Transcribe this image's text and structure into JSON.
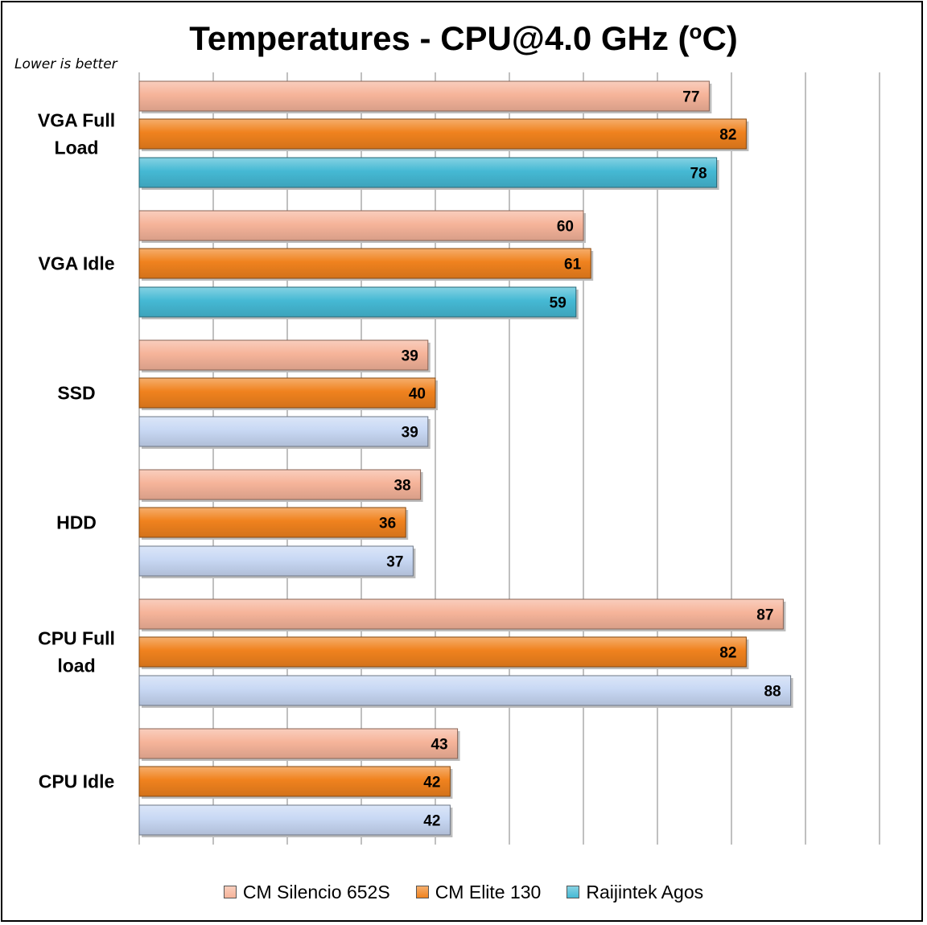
{
  "title": {
    "main": "Temperatures - CPU@4.0 GHz (",
    "sup": "o",
    "tail": "C)"
  },
  "subtitle": "Lower is better",
  "chart_data": {
    "type": "bar",
    "orientation": "horizontal",
    "title": "Temperatures - CPU@4.0 GHz (oC)",
    "categories": [
      "VGA Full Load",
      "VGA Idle",
      "SSD",
      "HDD",
      "CPU Full load",
      "CPU Idle"
    ],
    "category_lines": [
      [
        "VGA Full",
        "Load"
      ],
      [
        "VGA Idle"
      ],
      [
        "SSD"
      ],
      [
        "HDD"
      ],
      [
        "CPU Full",
        "load"
      ],
      [
        "CPU Idle"
      ]
    ],
    "series": [
      {
        "name": "CM Silencio 652S",
        "values": [
          77,
          60,
          39,
          38,
          87,
          43
        ],
        "color": "#f6b49a"
      },
      {
        "name": "CM Elite 130",
        "values": [
          82,
          61,
          40,
          36,
          82,
          42
        ],
        "color": "#f0821e"
      },
      {
        "name": "Raijintek Agos",
        "values": [
          78,
          59,
          39,
          37,
          88,
          42
        ],
        "color": "#45b9d4"
      }
    ],
    "bar_colors_override": {
      "Raijintek Agos": {
        "SSD": "#c8d8f4",
        "HDD": "#c8d8f4",
        "CPU Full load": "#c8d8f4",
        "CPU Idle": "#c8d8f4"
      }
    },
    "xlim": [
      0,
      100
    ],
    "x_gridlines": [
      0,
      10,
      20,
      30,
      40,
      50,
      60,
      70,
      80,
      90,
      100
    ],
    "grid": true,
    "legend": "bottom"
  }
}
